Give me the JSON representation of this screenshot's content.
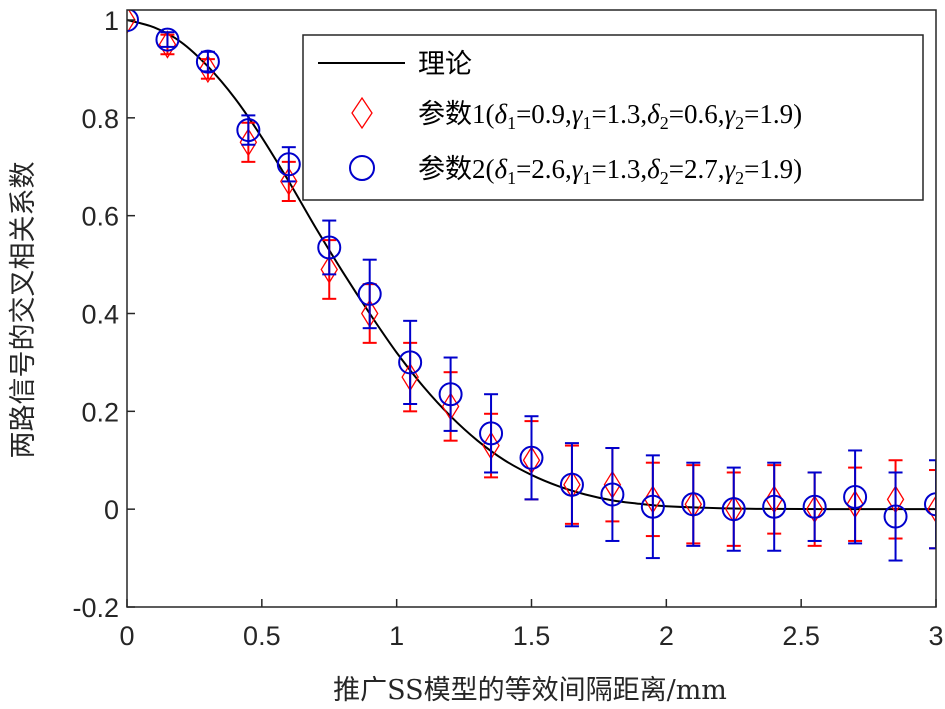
{
  "chart_data": {
    "type": "scatter",
    "xlabel": "推广SS模型的等效间隔距离/mm",
    "ylabel": "两路信号的交叉相关系数",
    "xlim": [
      0,
      3
    ],
    "ylim": [
      -0.2,
      1
    ],
    "xticks": [
      "0",
      "0.5",
      "1",
      "1.5",
      "2",
      "2.5",
      "3"
    ],
    "yticks": [
      "-0.2",
      "0",
      "0.2",
      "0.4",
      "0.6",
      "0.8",
      "1"
    ],
    "grid": false,
    "legend_position": "top-right",
    "colors": {
      "theory": "#000000",
      "param1": "#ff0000",
      "param2": "#0000cc",
      "axis": "#262626"
    },
    "series": [
      {
        "name": "理论",
        "kind": "line",
        "x": [
          0,
          0.1,
          0.2,
          0.3,
          0.4,
          0.5,
          0.6,
          0.7,
          0.8,
          0.9,
          1.0,
          1.1,
          1.2,
          1.3,
          1.4,
          1.5,
          1.6,
          1.7,
          1.8,
          1.9,
          2.0,
          2.2,
          2.4,
          2.6,
          2.8,
          3.0
        ],
        "y": [
          1.0,
          0.985,
          0.955,
          0.905,
          0.84,
          0.76,
          0.67,
          0.575,
          0.485,
          0.4,
          0.32,
          0.25,
          0.19,
          0.14,
          0.1,
          0.07,
          0.047,
          0.03,
          0.018,
          0.011,
          0.006,
          0.002,
          0.0005,
          0.0,
          0.0,
          0.0
        ]
      },
      {
        "name": "参数1",
        "legend_parts": [
          "参数1(",
          "δ",
          "1",
          "=0.9,",
          "γ",
          "1",
          "=1.3,",
          "δ",
          "2",
          "=0.6,",
          "γ",
          "2",
          "=1.9)"
        ],
        "kind": "errorbar",
        "marker": "diamond",
        "x": [
          0,
          0.15,
          0.3,
          0.45,
          0.6,
          0.75,
          0.9,
          1.05,
          1.2,
          1.35,
          1.5,
          1.65,
          1.8,
          1.95,
          2.1,
          2.25,
          2.4,
          2.55,
          2.7,
          2.85,
          3.0
        ],
        "y": [
          1.0,
          0.95,
          0.9,
          0.75,
          0.67,
          0.49,
          0.4,
          0.27,
          0.21,
          0.13,
          0.1,
          0.05,
          0.05,
          0.02,
          0.01,
          0.0,
          0.02,
          0.0,
          0.01,
          0.02,
          0.0
        ],
        "err": [
          0.0,
          0.02,
          0.02,
          0.04,
          0.04,
          0.06,
          0.06,
          0.07,
          0.07,
          0.065,
          0.08,
          0.08,
          0.075,
          0.075,
          0.08,
          0.075,
          0.07,
          0.075,
          0.075,
          0.08,
          0.08
        ]
      },
      {
        "name": "参数2",
        "legend_parts": [
          "参数2(",
          "δ",
          "1",
          "=2.6,",
          "γ",
          "1",
          "=1.3,",
          "δ",
          "2",
          "=2.7,",
          "γ",
          "2",
          "=1.9)"
        ],
        "kind": "errorbar",
        "marker": "circle",
        "x": [
          0,
          0.15,
          0.3,
          0.45,
          0.6,
          0.75,
          0.9,
          1.05,
          1.2,
          1.35,
          1.5,
          1.65,
          1.8,
          1.95,
          2.1,
          2.25,
          2.4,
          2.55,
          2.7,
          2.85,
          3.0
        ],
        "y": [
          1.0,
          0.96,
          0.915,
          0.775,
          0.705,
          0.535,
          0.44,
          0.3,
          0.235,
          0.155,
          0.105,
          0.05,
          0.03,
          0.005,
          0.01,
          0.0,
          0.005,
          0.005,
          0.025,
          -0.015,
          0.01
        ],
        "err": [
          0.0,
          0.015,
          0.02,
          0.03,
          0.035,
          0.055,
          0.07,
          0.085,
          0.075,
          0.08,
          0.085,
          0.085,
          0.095,
          0.105,
          0.085,
          0.085,
          0.09,
          0.07,
          0.095,
          0.09,
          0.09
        ]
      }
    ]
  }
}
